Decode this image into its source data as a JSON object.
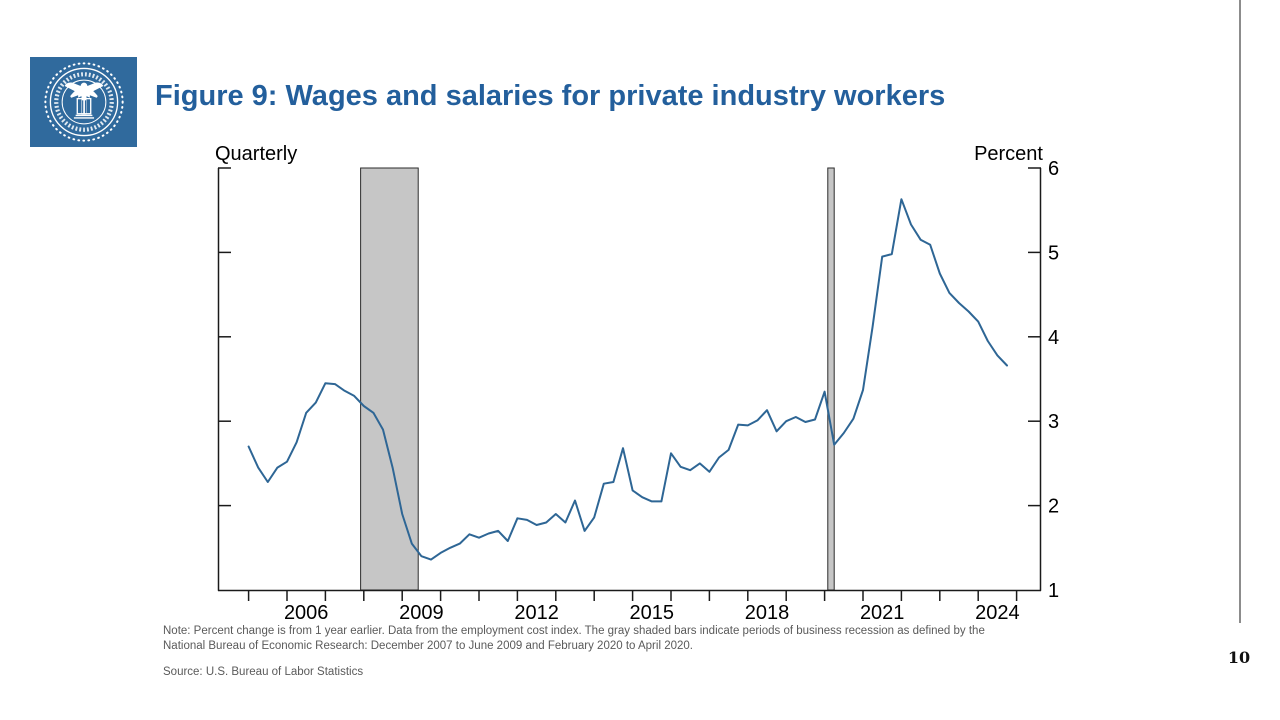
{
  "header": {
    "title": "Figure 9:  Wages and salaries for private industry workers",
    "logo_alt": "Board of Governors of the Federal Reserve System seal",
    "logo_bg_color": "#306a9d",
    "title_color": "#235f9c"
  },
  "page_number": "10",
  "notes": {
    "note_line1": "Note: Percent change is from 1 year earlier. Data from the employment cost index. The gray shaded bars indicate periods of business recession as defined by the",
    "note_line2": "National Bureau of Economic Research: December 2007 to June 2009 and February 2020 to April 2020.",
    "source": "Source: U.S. Bureau of Labor Statistics"
  },
  "chart_data": {
    "type": "line",
    "title": "Wages and salaries for private industry workers",
    "axis_unit_left": "Quarterly",
    "axis_unit_right": "Percent",
    "ylim": [
      1,
      6
    ],
    "y_ticks": [
      1,
      2,
      3,
      4,
      5,
      6
    ],
    "x_tick_years": [
      2005,
      2006,
      2007,
      2008,
      2009,
      2010,
      2011,
      2012,
      2013,
      2014,
      2015,
      2016,
      2017,
      2018,
      2019,
      2020,
      2021,
      2022,
      2023,
      2024,
      2025
    ],
    "x_label_years": [
      "2006",
      "2009",
      "2012",
      "2015",
      "2018",
      "2021",
      "2024"
    ],
    "grid": false,
    "legend": "none",
    "colors": {
      "line": "#2e6695",
      "band_fill": "#c6c6c6",
      "band_border": "#2b2b2b",
      "axis": "#1a1a1a"
    },
    "recession_bands": [
      {
        "label": "December 2007 to June 2009",
        "start": 2007.917,
        "end": 2009.417
      },
      {
        "label": "February 2020 to April 2020",
        "start": 2020.083,
        "end": 2020.25
      }
    ],
    "series": [
      {
        "name": "Wages and salaries, private industry, 12-month percent change",
        "points": [
          [
            2005.0,
            2.7
          ],
          [
            2005.25,
            2.45
          ],
          [
            2005.5,
            2.28
          ],
          [
            2005.75,
            2.45
          ],
          [
            2006.0,
            2.52
          ],
          [
            2006.25,
            2.75
          ],
          [
            2006.5,
            3.1
          ],
          [
            2006.75,
            3.22
          ],
          [
            2007.0,
            3.45
          ],
          [
            2007.25,
            3.44
          ],
          [
            2007.5,
            3.36
          ],
          [
            2007.75,
            3.3
          ],
          [
            2008.0,
            3.18
          ],
          [
            2008.25,
            3.1
          ],
          [
            2008.5,
            2.9
          ],
          [
            2008.75,
            2.45
          ],
          [
            2009.0,
            1.9
          ],
          [
            2009.25,
            1.55
          ],
          [
            2009.5,
            1.4
          ],
          [
            2009.75,
            1.36
          ],
          [
            2010.0,
            1.44
          ],
          [
            2010.25,
            1.5
          ],
          [
            2010.5,
            1.55
          ],
          [
            2010.75,
            1.66
          ],
          [
            2011.0,
            1.62
          ],
          [
            2011.25,
            1.67
          ],
          [
            2011.5,
            1.7
          ],
          [
            2011.75,
            1.58
          ],
          [
            2012.0,
            1.85
          ],
          [
            2012.25,
            1.83
          ],
          [
            2012.5,
            1.77
          ],
          [
            2012.75,
            1.8
          ],
          [
            2013.0,
            1.9
          ],
          [
            2013.25,
            1.8
          ],
          [
            2013.5,
            2.06
          ],
          [
            2013.75,
            1.7
          ],
          [
            2014.0,
            1.86
          ],
          [
            2014.25,
            2.26
          ],
          [
            2014.5,
            2.28
          ],
          [
            2014.75,
            2.68
          ],
          [
            2015.0,
            2.18
          ],
          [
            2015.25,
            2.1
          ],
          [
            2015.5,
            2.05
          ],
          [
            2015.75,
            2.05
          ],
          [
            2016.0,
            2.62
          ],
          [
            2016.25,
            2.46
          ],
          [
            2016.5,
            2.42
          ],
          [
            2016.75,
            2.5
          ],
          [
            2017.0,
            2.4
          ],
          [
            2017.25,
            2.57
          ],
          [
            2017.5,
            2.66
          ],
          [
            2017.75,
            2.96
          ],
          [
            2018.0,
            2.95
          ],
          [
            2018.25,
            3.01
          ],
          [
            2018.5,
            3.13
          ],
          [
            2018.75,
            2.88
          ],
          [
            2019.0,
            3.0
          ],
          [
            2019.25,
            3.05
          ],
          [
            2019.5,
            2.99
          ],
          [
            2019.75,
            3.02
          ],
          [
            2020.0,
            3.35
          ],
          [
            2020.25,
            2.72
          ],
          [
            2020.5,
            2.86
          ],
          [
            2020.75,
            3.03
          ],
          [
            2021.0,
            3.37
          ],
          [
            2021.25,
            4.12
          ],
          [
            2021.5,
            4.95
          ],
          [
            2021.75,
            4.98
          ],
          [
            2022.0,
            5.63
          ],
          [
            2022.25,
            5.33
          ],
          [
            2022.5,
            5.15
          ],
          [
            2022.75,
            5.09
          ],
          [
            2023.0,
            4.75
          ],
          [
            2023.25,
            4.52
          ],
          [
            2023.5,
            4.4
          ],
          [
            2023.75,
            4.3
          ],
          [
            2024.0,
            4.18
          ],
          [
            2024.25,
            3.95
          ],
          [
            2024.5,
            3.78
          ],
          [
            2024.75,
            3.66
          ]
        ]
      }
    ]
  }
}
